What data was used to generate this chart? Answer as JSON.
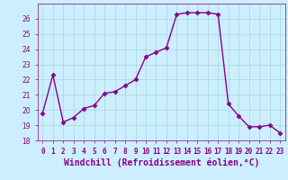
{
  "x": [
    0,
    1,
    2,
    3,
    4,
    5,
    6,
    7,
    8,
    9,
    10,
    11,
    12,
    13,
    14,
    15,
    16,
    17,
    18,
    19,
    20,
    21,
    22,
    23
  ],
  "y": [
    19.8,
    22.3,
    19.2,
    19.5,
    20.1,
    20.3,
    21.1,
    21.2,
    21.6,
    22.0,
    23.5,
    23.8,
    24.1,
    26.3,
    26.4,
    26.4,
    26.4,
    26.3,
    20.4,
    19.6,
    18.9,
    18.9,
    19.0,
    18.5
  ],
  "line_color": "#880088",
  "marker": "D",
  "marker_size": 2.5,
  "xlabel": "Windchill (Refroidissement éolien,°C)",
  "xlabel_fontsize": 7,
  "ylim": [
    18,
    27
  ],
  "yticks": [
    18,
    19,
    20,
    21,
    22,
    23,
    24,
    25,
    26
  ],
  "xlim": [
    -0.5,
    23.5
  ],
  "xticks": [
    0,
    1,
    2,
    3,
    4,
    5,
    6,
    7,
    8,
    9,
    10,
    11,
    12,
    13,
    14,
    15,
    16,
    17,
    18,
    19,
    20,
    21,
    22,
    23
  ],
  "xtick_labels": [
    "0",
    "1",
    "2",
    "3",
    "4",
    "5",
    "6",
    "7",
    "8",
    "9",
    "10",
    "11",
    "12",
    "13",
    "14",
    "15",
    "16",
    "17",
    "18",
    "19",
    "20",
    "21",
    "22",
    "23"
  ],
  "grid_color": "#aadddd",
  "background_color": "#cceeff",
  "tick_fontsize": 5.5,
  "line_width": 1.0
}
